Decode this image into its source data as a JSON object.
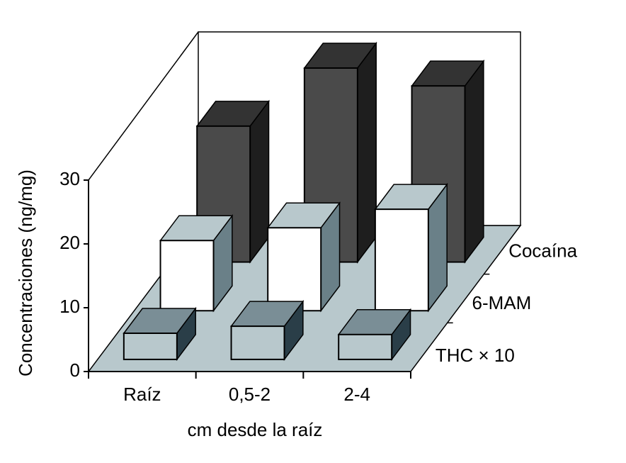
{
  "chart_data": {
    "type": "bar3d",
    "x_label": "cm desde la raíz",
    "y_label": "Concentraciones (ng/mg)",
    "categories": [
      "Raíz",
      "0,5-2",
      "2-4"
    ],
    "series": [
      {
        "name": "THC × 10",
        "color": "#b8c8cc",
        "values": [
          4.1,
          5.2,
          3.9
        ]
      },
      {
        "name": "6-MAM",
        "color": "#ffffff",
        "values": [
          11,
          13,
          15.9
        ]
      },
      {
        "name": "Cocaína",
        "color": "#4a4a4a",
        "values": [
          21.3,
          30.4,
          27.6
        ]
      }
    ],
    "ylim": [
      0,
      30
    ],
    "yticks": [
      0,
      10,
      20,
      30
    ]
  }
}
